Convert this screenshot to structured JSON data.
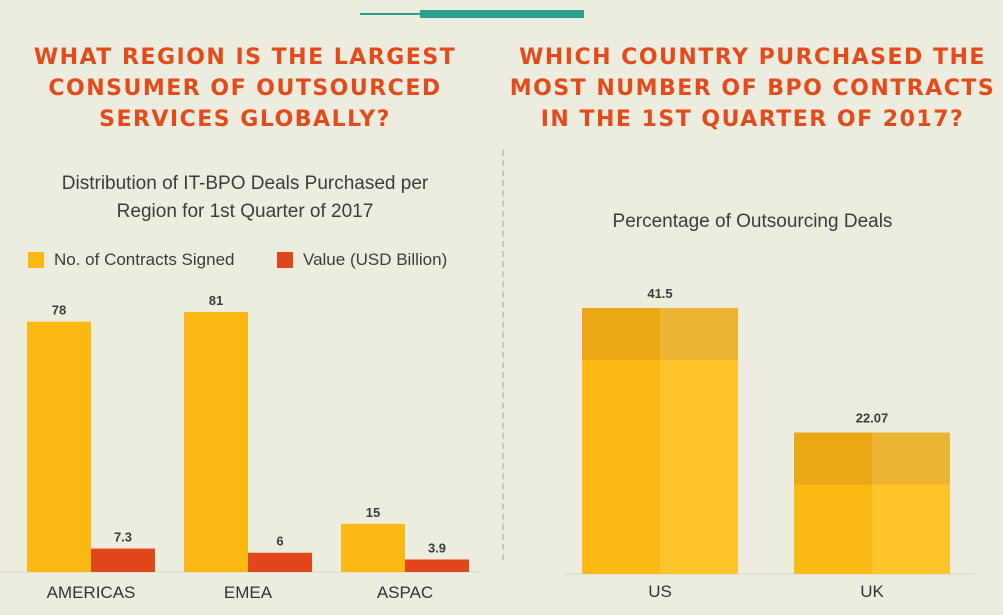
{
  "left_heading": [
    "What region is the largest",
    "consumer of outsourced",
    "services globally?"
  ],
  "right_heading": [
    "Which country purchased the",
    "most number of BPO contracts",
    "in the 1st quarter of 2017?"
  ],
  "colors": {
    "yellow": "#fcb813",
    "orange": "#e2461b",
    "heading": "#e44a1a",
    "accent": "#2aa08f"
  },
  "chart_data": [
    {
      "type": "bar",
      "title": "Distribution of IT-BPO Deals Purchased per Region for 1st Quarter of 2017",
      "categories": [
        "AMERICAS",
        "EMEA",
        "ASPAC"
      ],
      "series": [
        {
          "name": "No. of Contracts Signed",
          "values": [
            78,
            81,
            15
          ]
        },
        {
          "name": "Value (USD Billion)",
          "values": [
            7.3,
            6,
            3.9
          ]
        }
      ],
      "value_labels": [
        [
          "78",
          "81",
          "15"
        ],
        [
          "7.3",
          "6",
          "3.9"
        ]
      ],
      "legend_position": "top-left",
      "grid": false
    },
    {
      "type": "bar",
      "title": "Percentage of Outsourcing Deals",
      "categories": [
        "US",
        "UK"
      ],
      "values": [
        41.5,
        22.07
      ],
      "value_labels": [
        "41.5",
        "22.07"
      ],
      "grid": false
    }
  ]
}
